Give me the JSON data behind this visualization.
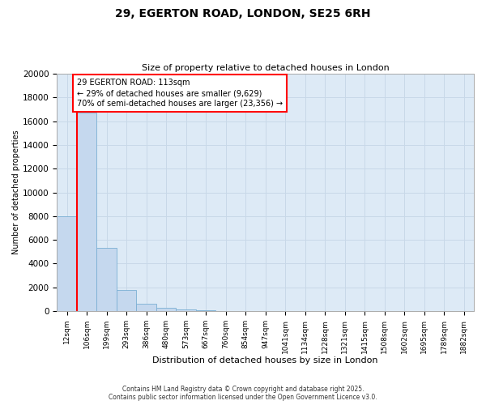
{
  "title_line1": "29, EGERTON ROAD, LONDON, SE25 6RH",
  "title_line2": "Size of property relative to detached houses in London",
  "xlabel": "Distribution of detached houses by size in London",
  "ylabel": "Number of detached properties",
  "bar_labels": [
    "12sqm",
    "106sqm",
    "199sqm",
    "293sqm",
    "386sqm",
    "480sqm",
    "573sqm",
    "667sqm",
    "760sqm",
    "854sqm",
    "947sqm",
    "1041sqm",
    "1134sqm",
    "1228sqm",
    "1321sqm",
    "1415sqm",
    "1508sqm",
    "1602sqm",
    "1695sqm",
    "1789sqm",
    "1882sqm"
  ],
  "bar_values": [
    8000,
    16700,
    5300,
    1800,
    600,
    300,
    150,
    80,
    30,
    10,
    5,
    2,
    1,
    0,
    0,
    0,
    0,
    0,
    0,
    0,
    0
  ],
  "bar_color": "#c5d8ee",
  "bar_edge_color": "#7aafd4",
  "annotation_text": "29 EGERTON ROAD: 113sqm\n← 29% of detached houses are smaller (9,629)\n70% of semi-detached houses are larger (23,356) →",
  "ylim": [
    0,
    20000
  ],
  "yticks": [
    0,
    2000,
    4000,
    6000,
    8000,
    10000,
    12000,
    14000,
    16000,
    18000,
    20000
  ],
  "footer_line1": "Contains HM Land Registry data © Crown copyright and database right 2025.",
  "footer_line2": "Contains public sector information licensed under the Open Government Licence v3.0.",
  "grid_color": "#c8d8e8",
  "background_color": "#ddeaf6"
}
